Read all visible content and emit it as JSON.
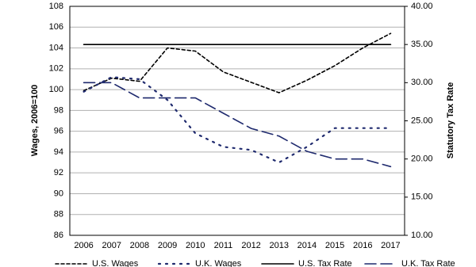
{
  "chart_data": {
    "type": "line",
    "categories": [
      "2006",
      "2007",
      "2008",
      "2009",
      "2010",
      "2011",
      "2012",
      "2013",
      "2014",
      "2015",
      "2016",
      "2017"
    ],
    "ylabel": "Wages, 2006=100",
    "y2label": "Statutory Tax Rate",
    "ylim": [
      86,
      108
    ],
    "yticks": [
      86,
      88,
      90,
      92,
      94,
      96,
      98,
      100,
      102,
      104,
      106,
      108
    ],
    "y2lim": [
      10,
      40
    ],
    "y2ticks": [
      {
        "value": 10,
        "label": "10.00"
      },
      {
        "value": 15,
        "label": "15.00"
      },
      {
        "value": 20,
        "label": "20.00"
      },
      {
        "value": 25,
        "label": "25.00"
      },
      {
        "value": 30,
        "label": "30.00"
      },
      {
        "value": 35,
        "label": "35.00"
      },
      {
        "value": 40,
        "label": "40.00"
      }
    ],
    "grid": true,
    "legend": "bottom",
    "series": [
      {
        "name": "U.S. Wages",
        "color": "#000000",
        "style": "dashed",
        "values": [
          99.9,
          101.1,
          100.8,
          104.0,
          103.7,
          101.7,
          100.7,
          99.7,
          100.9,
          102.3,
          104.0,
          105.4
        ]
      },
      {
        "name": "U.K. Wages",
        "color": "#1f2a6e",
        "style": "dotted",
        "values": [
          99.8,
          101.2,
          101.0,
          99.0,
          95.8,
          94.5,
          94.2,
          93.0,
          94.5,
          96.3,
          96.3,
          96.3
        ]
      },
      {
        "name": "U.S. Tax Rate",
        "color": "#000000",
        "style": "solid",
        "axis": "y2",
        "values": [
          35,
          35,
          35,
          35,
          35,
          35,
          35,
          35,
          35,
          35,
          35,
          35
        ]
      },
      {
        "name": "U.K. Tax Rate",
        "color": "#1f2a6e",
        "style": "longdash",
        "axis": "y2",
        "values": [
          30,
          30,
          28,
          28,
          28,
          26,
          24,
          23,
          21,
          20,
          20,
          19
        ]
      }
    ]
  }
}
